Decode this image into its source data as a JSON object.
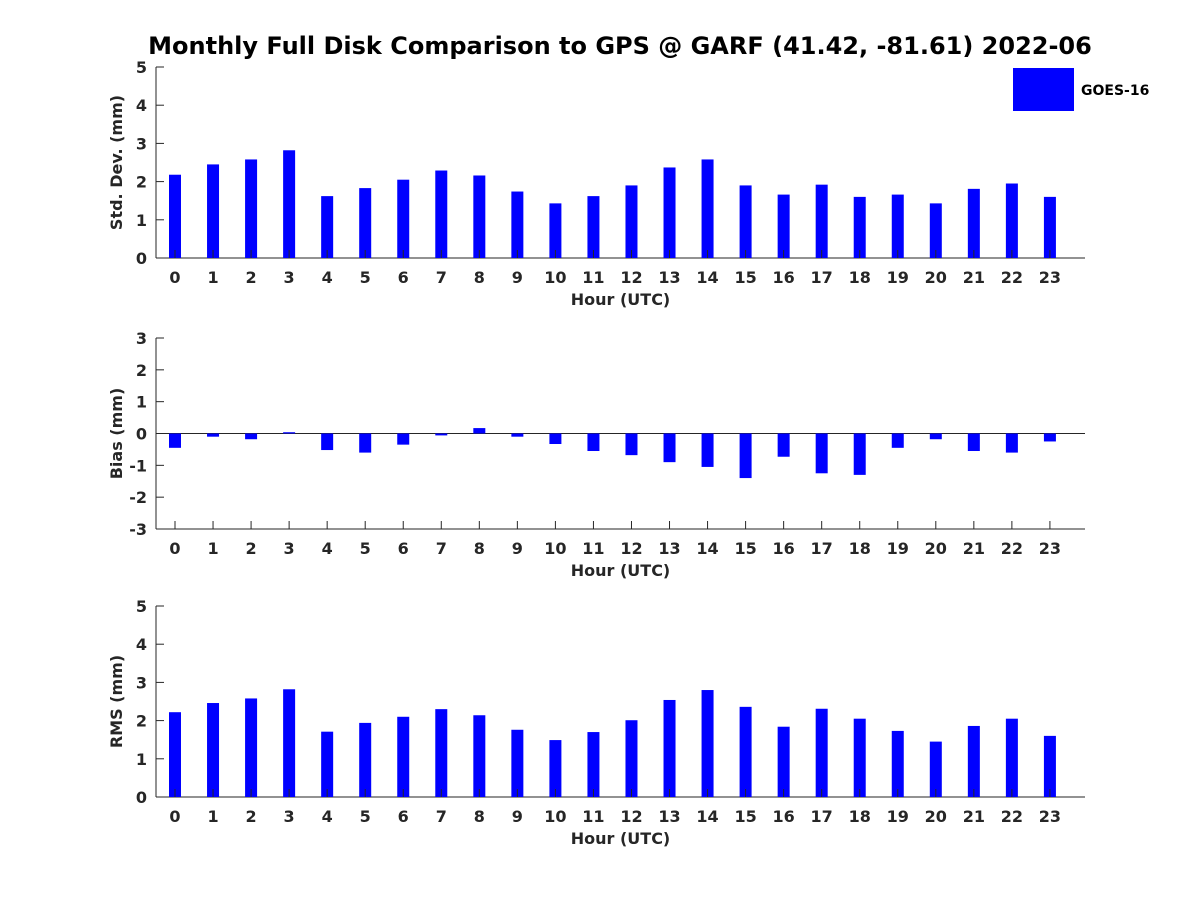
{
  "title": "Monthly Full Disk Comparison to GPS @ GARF (41.42, -81.61) 2022-06",
  "legend": {
    "label": "GOES-16",
    "color": "#0000FF"
  },
  "chart_data": [
    {
      "type": "bar",
      "name": "std_dev",
      "ylabel": "Std. Dev. (mm)",
      "xlabel": "Hour (UTC)",
      "ylim": [
        0,
        5
      ],
      "yticks": [
        0,
        1,
        2,
        3,
        4,
        5
      ],
      "categories": [
        "0",
        "1",
        "2",
        "3",
        "4",
        "5",
        "6",
        "7",
        "8",
        "9",
        "10",
        "11",
        "12",
        "13",
        "14",
        "15",
        "16",
        "17",
        "18",
        "19",
        "20",
        "21",
        "22",
        "23"
      ],
      "series": [
        {
          "name": "GOES-16",
          "color": "#0000FF",
          "values": [
            2.18,
            2.45,
            2.58,
            2.82,
            1.62,
            1.83,
            2.05,
            2.29,
            2.16,
            1.74,
            1.43,
            1.62,
            1.9,
            2.37,
            2.58,
            1.9,
            1.66,
            1.92,
            1.6,
            1.66,
            1.43,
            1.81,
            1.95,
            1.6
          ]
        }
      ],
      "grid": false
    },
    {
      "type": "bar",
      "name": "bias",
      "ylabel": "Bias (mm)",
      "xlabel": "Hour (UTC)",
      "ylim": [
        -3,
        3
      ],
      "yticks": [
        -3,
        -2,
        -1,
        0,
        1,
        2,
        3
      ],
      "categories": [
        "0",
        "1",
        "2",
        "3",
        "4",
        "5",
        "6",
        "7",
        "8",
        "9",
        "10",
        "11",
        "12",
        "13",
        "14",
        "15",
        "16",
        "17",
        "18",
        "19",
        "20",
        "21",
        "22",
        "23"
      ],
      "series": [
        {
          "name": "GOES-16",
          "color": "#0000FF",
          "values": [
            -0.45,
            -0.1,
            -0.18,
            0.04,
            -0.52,
            -0.6,
            -0.35,
            -0.06,
            0.17,
            -0.1,
            -0.33,
            -0.55,
            -0.68,
            -0.9,
            -1.05,
            -1.4,
            -0.73,
            -1.25,
            -1.3,
            -0.45,
            -0.18,
            -0.55,
            -0.6,
            -0.25
          ]
        }
      ],
      "zero_line": true,
      "grid": false
    },
    {
      "type": "bar",
      "name": "rms",
      "ylabel": "RMS (mm)",
      "xlabel": "Hour (UTC)",
      "ylim": [
        0,
        5
      ],
      "yticks": [
        0,
        1,
        2,
        3,
        4,
        5
      ],
      "categories": [
        "0",
        "1",
        "2",
        "3",
        "4",
        "5",
        "6",
        "7",
        "8",
        "9",
        "10",
        "11",
        "12",
        "13",
        "14",
        "15",
        "16",
        "17",
        "18",
        "19",
        "20",
        "21",
        "22",
        "23"
      ],
      "series": [
        {
          "name": "GOES-16",
          "color": "#0000FF",
          "values": [
            2.22,
            2.46,
            2.58,
            2.82,
            1.71,
            1.94,
            2.1,
            2.3,
            2.14,
            1.76,
            1.49,
            1.7,
            2.01,
            2.54,
            2.8,
            2.36,
            1.84,
            2.31,
            2.05,
            1.73,
            1.45,
            1.86,
            2.05,
            1.6
          ]
        }
      ],
      "grid": false
    }
  ]
}
